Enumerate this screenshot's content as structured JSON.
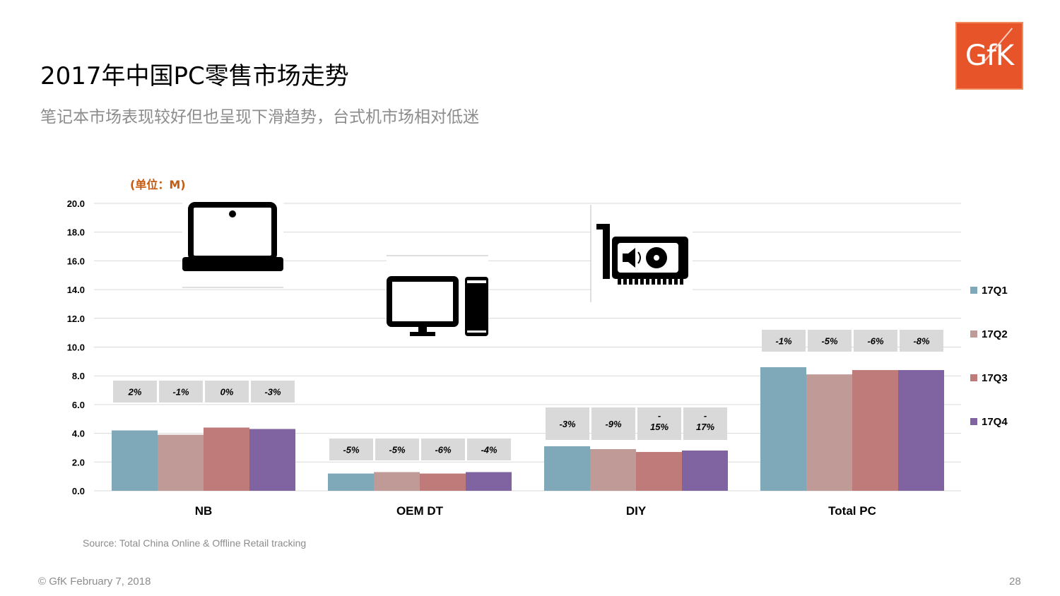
{
  "header": {
    "title": "2017年中国PC零售市场走势",
    "subtitle": "笔记本市场表现较好但也呈现下滑趋势，台式机市场相对低迷",
    "logo_text": "GfK"
  },
  "chart_data": {
    "type": "bar",
    "unit_label": "(单位：M)",
    "categories": [
      "NB",
      "OEM DT",
      "DIY",
      "Total PC"
    ],
    "series": [
      {
        "name": "17Q1",
        "color": "#7fa9b9",
        "values": [
          4.2,
          1.2,
          3.1,
          8.6
        ]
      },
      {
        "name": "17Q2",
        "color": "#bf9a96",
        "values": [
          3.9,
          1.3,
          2.9,
          8.1
        ]
      },
      {
        "name": "17Q3",
        "color": "#bf7a7a",
        "values": [
          4.4,
          1.2,
          2.7,
          8.4
        ]
      },
      {
        "name": "17Q4",
        "color": "#8064a2",
        "values": [
          4.3,
          1.3,
          2.8,
          8.4
        ]
      }
    ],
    "growth_labels": [
      [
        "2%",
        "-1%",
        "0%",
        "-3%"
      ],
      [
        "-5%",
        "-5%",
        "-6%",
        "-4%"
      ],
      [
        "-3%",
        "-9%",
        "-\n15%",
        "-\n17%"
      ],
      [
        "-1%",
        "-5%",
        "-6%",
        "-8%"
      ]
    ],
    "y_ticks": [
      "0.0",
      "2.0",
      "4.0",
      "6.0",
      "8.0",
      "10.0",
      "12.0",
      "14.0",
      "16.0",
      "18.0",
      "20.0"
    ],
    "ylim": [
      0,
      20
    ],
    "grid": true,
    "legend_position": "right",
    "category_icons": [
      "laptop-icon",
      "desktop-pc-icon",
      "graphics-card-icon"
    ]
  },
  "source": "Source: Total China Online & Offline Retail tracking",
  "footer": {
    "copyright": "© GfK February 7, 2018",
    "page_number": "28"
  }
}
